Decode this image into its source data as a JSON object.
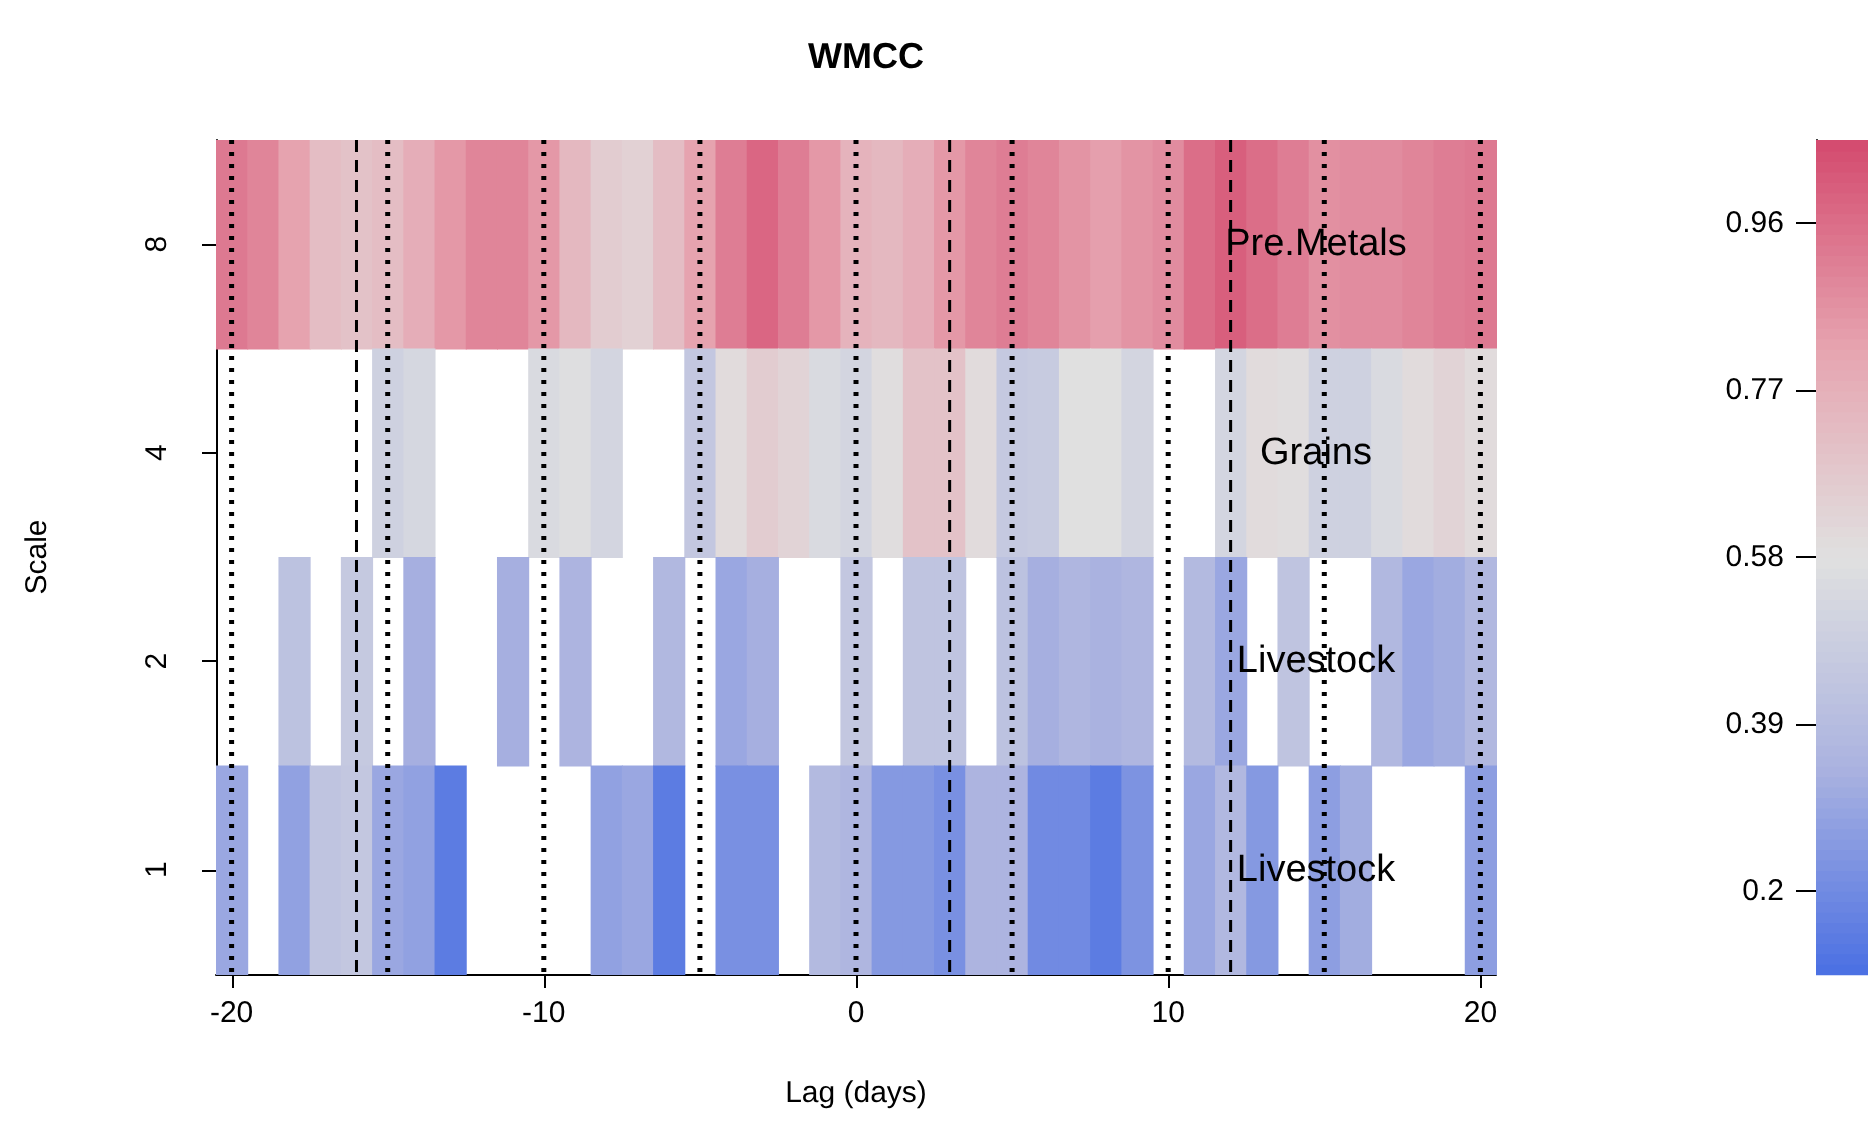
{
  "chart_data": {
    "type": "heatmap",
    "title": "WMCC",
    "xlabel": "Lag (days)",
    "ylabel": "Scale",
    "x": [
      -20,
      -19,
      -18,
      -17,
      -16,
      -15,
      -14,
      -13,
      -12,
      -11,
      -10,
      -9,
      -8,
      -7,
      -6,
      -5,
      -4,
      -3,
      -2,
      -1,
      0,
      1,
      2,
      3,
      4,
      5,
      6,
      7,
      8,
      9,
      10,
      11,
      12,
      13,
      14,
      15,
      16,
      17,
      18,
      19,
      20
    ],
    "y_categories": [
      "8",
      "4",
      "2",
      "1"
    ],
    "cells": [
      [
        0.93,
        0.9,
        0.82,
        0.72,
        0.7,
        0.72,
        0.78,
        0.85,
        0.9,
        0.9,
        0.85,
        0.74,
        0.66,
        0.64,
        0.72,
        0.82,
        0.92,
        0.98,
        0.92,
        0.85,
        0.76,
        0.74,
        0.78,
        0.85,
        0.9,
        0.92,
        0.9,
        0.86,
        0.83,
        0.86,
        0.88,
        0.96,
        1.0,
        0.96,
        0.92,
        0.87,
        0.88,
        0.88,
        0.9,
        0.92,
        0.93
      ],
      [
        null,
        null,
        null,
        null,
        null,
        0.5,
        0.53,
        null,
        null,
        null,
        0.55,
        0.57,
        0.52,
        null,
        null,
        0.45,
        0.6,
        0.66,
        0.63,
        0.55,
        0.52,
        0.59,
        0.7,
        0.7,
        0.6,
        0.46,
        0.47,
        0.58,
        0.58,
        0.52,
        null,
        null,
        0.52,
        0.6,
        0.59,
        0.5,
        0.5,
        0.55,
        0.6,
        0.63,
        0.6
      ],
      [
        null,
        null,
        0.42,
        null,
        0.46,
        null,
        0.33,
        null,
        null,
        0.33,
        null,
        0.35,
        null,
        null,
        0.37,
        null,
        0.3,
        0.33,
        null,
        null,
        0.45,
        null,
        0.43,
        0.43,
        null,
        0.42,
        0.33,
        0.36,
        0.34,
        0.36,
        null,
        0.38,
        0.3,
        null,
        0.43,
        null,
        null,
        0.37,
        0.3,
        0.32,
        0.37
      ],
      [
        0.3,
        null,
        0.28,
        0.43,
        0.45,
        0.3,
        0.28,
        0.15,
        null,
        null,
        null,
        null,
        0.28,
        0.3,
        0.15,
        null,
        0.22,
        0.22,
        null,
        0.38,
        0.36,
        0.25,
        0.25,
        0.22,
        0.35,
        0.35,
        0.2,
        0.2,
        0.15,
        0.23,
        null,
        0.3,
        0.37,
        0.25,
        null,
        0.27,
        0.32,
        null,
        null,
        null,
        0.27
      ]
    ],
    "xlim": [
      -20.5,
      20.5
    ],
    "xticks": [
      -20,
      -10,
      0,
      10,
      20
    ],
    "clim": [
      0.105,
      1.055
    ],
    "cticks": [
      0.2,
      0.39,
      0.58,
      0.77,
      0.96
    ],
    "ref_lines": [
      {
        "axis": "x",
        "value": -20,
        "line_style": "dotted"
      },
      {
        "axis": "x",
        "value": -15,
        "line_style": "dotted"
      },
      {
        "axis": "x",
        "value": -10,
        "line_style": "dotted"
      },
      {
        "axis": "x",
        "value": -5,
        "line_style": "dotted"
      },
      {
        "axis": "x",
        "value": 0,
        "line_style": "dotted"
      },
      {
        "axis": "x",
        "value": 5,
        "line_style": "dotted"
      },
      {
        "axis": "x",
        "value": 10,
        "line_style": "dotted"
      },
      {
        "axis": "x",
        "value": 15,
        "line_style": "dotted"
      },
      {
        "axis": "x",
        "value": 20,
        "line_style": "dotted"
      },
      {
        "axis": "x",
        "value": 12,
        "line_style": "dashed"
      },
      {
        "axis": "x",
        "value": 3,
        "line_style": "dashed"
      },
      {
        "axis": "x",
        "value": -16,
        "line_style": "dashed"
      }
    ],
    "annotations": [
      "Pre.Metals",
      "Grains",
      "Livestock",
      "Livestock"
    ]
  }
}
